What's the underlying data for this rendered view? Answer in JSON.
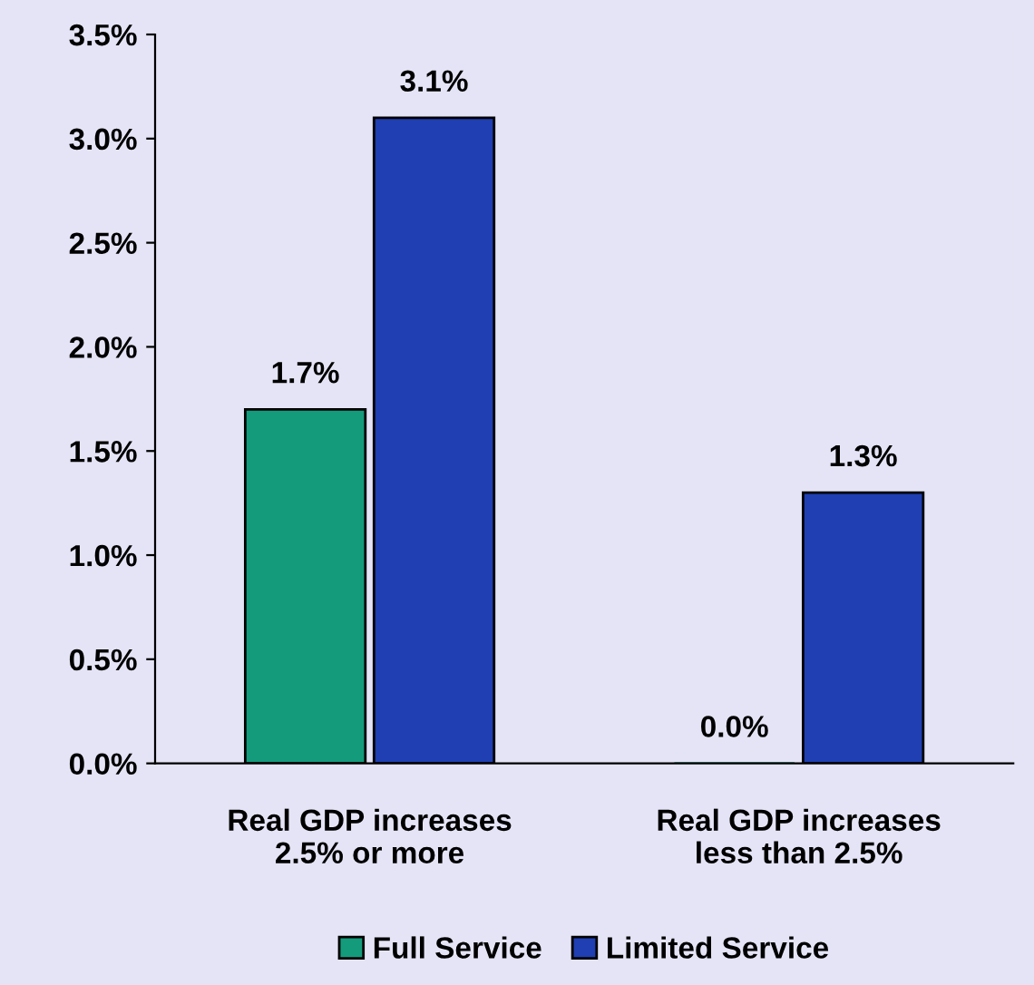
{
  "chart_data": {
    "type": "bar",
    "categories": [
      "Real GDP increases\n2.5% or more",
      "Real GDP increases\nless than 2.5%"
    ],
    "series": [
      {
        "name": "Full Service",
        "color": "#139b7c",
        "values": [
          1.7,
          0.0
        ],
        "value_labels": [
          "1.7%",
          "0.0%"
        ]
      },
      {
        "name": "Limited Service",
        "color": "#1f3fb2",
        "values": [
          3.1,
          1.3
        ],
        "value_labels": [
          "3.1%",
          "1.3%"
        ]
      }
    ],
    "ylim": [
      0,
      3.5
    ],
    "yticks": [
      {
        "value": 0,
        "label": "0.0%"
      },
      {
        "value": 0.5,
        "label": "0.5%"
      },
      {
        "value": 1.0,
        "label": "1.0%"
      },
      {
        "value": 1.5,
        "label": "1.5%"
      },
      {
        "value": 2.0,
        "label": "2.0%"
      },
      {
        "value": 2.5,
        "label": "2.5%"
      },
      {
        "value": 3.0,
        "label": "3.0%"
      },
      {
        "value": 3.5,
        "label": "3.5%"
      }
    ],
    "grid": false,
    "legend": "bottom"
  }
}
